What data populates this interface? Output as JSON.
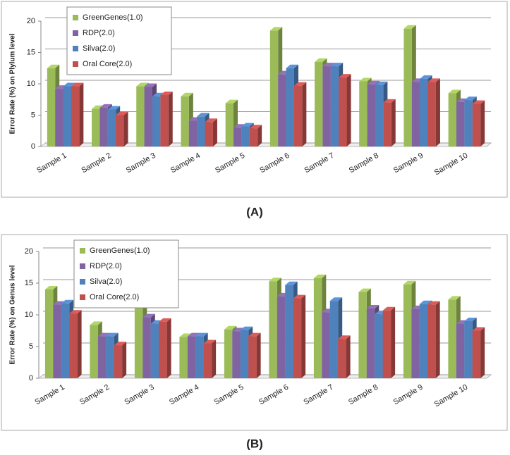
{
  "chart_data": [
    {
      "type": "bar",
      "label": "(A)",
      "y_label": "Error Rate (%) on Plylum level",
      "categories": [
        "Sample 1",
        "Sample 2",
        "Sample 3",
        "Sample 4",
        "Sample 5",
        "Sample 6",
        "Sample 7",
        "Sample 8",
        "Sample 9",
        "Sample 10"
      ],
      "series": [
        {
          "name": "GreenGenes(1.0)",
          "color": "#9bbb59",
          "values": [
            12.5,
            6.0,
            9.6,
            8.0,
            6.9,
            18.5,
            13.5,
            10.4,
            18.8,
            8.5
          ]
        },
        {
          "name": "RDP(2.0)",
          "color": "#8064a2",
          "values": [
            9.2,
            6.2,
            9.5,
            4.1,
            3.0,
            11.5,
            12.8,
            9.9,
            10.3,
            7.1
          ]
        },
        {
          "name": "Silva(2.0)",
          "color": "#4f81bd",
          "values": [
            9.6,
            5.9,
            8.0,
            4.8,
            3.2,
            12.5,
            12.8,
            9.8,
            10.8,
            7.4
          ]
        },
        {
          "name": "Oral Core(2.0)",
          "color": "#c0504d",
          "values": [
            9.6,
            5.0,
            8.2,
            3.9,
            2.9,
            9.7,
            11.0,
            7.0,
            10.3,
            6.8
          ]
        }
      ],
      "ylim": [
        0,
        20
      ],
      "yticks": [
        0,
        5,
        10,
        15,
        20
      ],
      "grid": true,
      "legend": "upper left"
    },
    {
      "type": "bar",
      "label": "(B)",
      "y_label": "Error Rate (%) on Genus level",
      "categories": [
        "Sample 1",
        "Sample 2",
        "Sample 3",
        "Sample 4",
        "Sample 5",
        "Sample 6",
        "Sample 7",
        "Sample 8",
        "Sample 9",
        "Sample 10"
      ],
      "series": [
        {
          "name": "GreenGenes(1.0)",
          "color": "#9bbb59",
          "values": [
            14.0,
            8.4,
            11.3,
            6.5,
            7.7,
            15.3,
            15.8,
            13.6,
            14.8,
            12.4
          ]
        },
        {
          "name": "RDP(2.0)",
          "color": "#8064a2",
          "values": [
            11.6,
            6.6,
            9.6,
            6.6,
            7.4,
            12.9,
            10.4,
            11.0,
            10.9,
            8.6
          ]
        },
        {
          "name": "Silva(2.0)",
          "color": "#4f81bd",
          "values": [
            11.8,
            6.6,
            8.6,
            6.6,
            7.6,
            14.7,
            12.2,
            10.1,
            11.7,
            9.0
          ]
        },
        {
          "name": "Oral Core(2.0)",
          "color": "#c0504d",
          "values": [
            10.2,
            5.2,
            8.9,
            5.5,
            6.6,
            12.6,
            6.2,
            10.7,
            11.6,
            7.5
          ]
        }
      ],
      "ylim": [
        0,
        20
      ],
      "yticks": [
        0,
        5,
        10,
        15,
        20
      ],
      "grid": true,
      "legend": "upper left"
    }
  ]
}
